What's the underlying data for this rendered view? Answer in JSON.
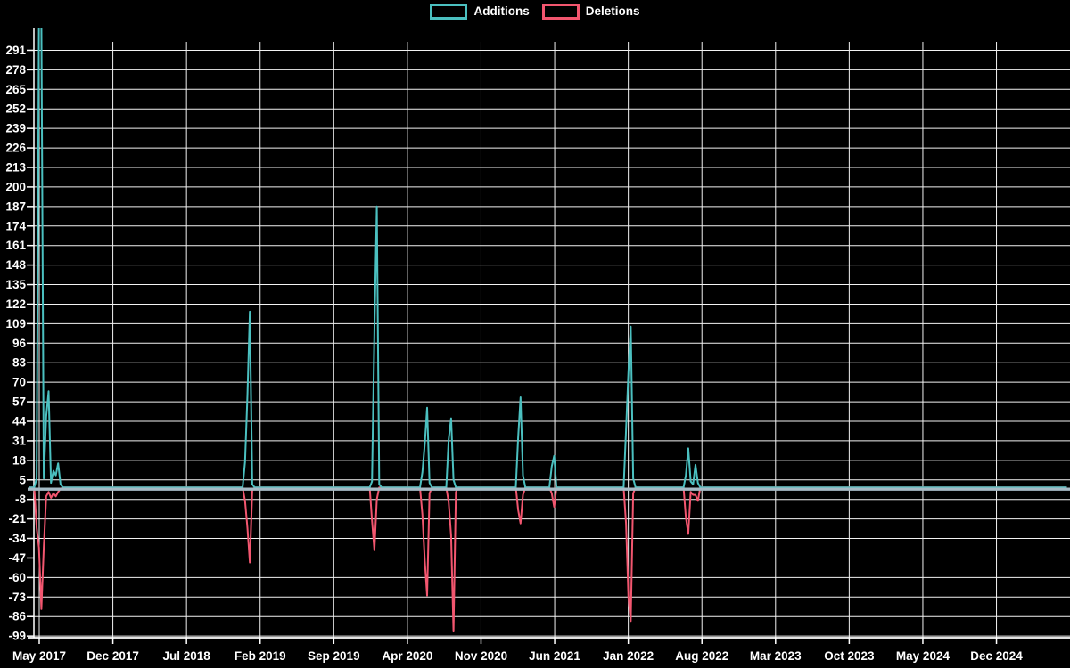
{
  "page": {
    "background": "#000000"
  },
  "legend": {
    "position": "top-center",
    "items": [
      {
        "label": "Additions",
        "color": "#4bc0c0"
      },
      {
        "label": "Deletions",
        "color": "#f2566f"
      }
    ]
  },
  "colors": {
    "background": "#000000",
    "grid": "#f2f2f2",
    "axis": "#ffffff",
    "tick_text": "#ffffff",
    "zero_baseline": "#a6bac5",
    "additions": "#4bc0c0",
    "deletions": "#f2566f"
  },
  "chart_data": {
    "type": "line",
    "title": "",
    "legend_position": "top-center",
    "grid": true,
    "x_axis": {
      "tick_labels": [
        "May 2017",
        "Dec 2017",
        "Jul 2018",
        "Feb 2019",
        "Sep 2019",
        "Apr 2020",
        "Nov 2020",
        "Jun 2021",
        "Jan 2022",
        "Aug 2022",
        "Mar 2023",
        "Oct 2023",
        "May 2024",
        "Dec 2024"
      ]
    },
    "y_axis": {
      "tick_labels": [
        291,
        278,
        265,
        252,
        239,
        226,
        213,
        200,
        187,
        174,
        161,
        148,
        135,
        122,
        109,
        96,
        83,
        70,
        57,
        44,
        31,
        18,
        5,
        -8,
        -21,
        -34,
        -47,
        -60,
        -73,
        -86,
        -99
      ],
      "min": -99,
      "max": 291,
      "step": 13
    },
    "baseline_value": 0,
    "weeks_total": 434,
    "notes": "weekly code-frequency style chart; values are 0 except at listed week indices; the two tallest Additions spikes in May 2017 exceed the visible scale (~306+) and are clipped at the top of the plot",
    "series": [
      {
        "name": "Additions",
        "color": "#4bc0c0",
        "points": [
          [
            3,
            6
          ],
          [
            4,
            312
          ],
          [
            5,
            309
          ],
          [
            6,
            6
          ],
          [
            7,
            47
          ],
          [
            8,
            64
          ],
          [
            9,
            3
          ],
          [
            10,
            11
          ],
          [
            11,
            8
          ],
          [
            12,
            16
          ],
          [
            13,
            2
          ],
          [
            90,
            17
          ],
          [
            91,
            61
          ],
          [
            92,
            117
          ],
          [
            93,
            2
          ],
          [
            143,
            4
          ],
          [
            144,
            104
          ],
          [
            145,
            187
          ],
          [
            146,
            2
          ],
          [
            164,
            10
          ],
          [
            165,
            29
          ],
          [
            166,
            53
          ],
          [
            167,
            3
          ],
          [
            175,
            32
          ],
          [
            176,
            46
          ],
          [
            177,
            5
          ],
          [
            204,
            33
          ],
          [
            205,
            60
          ],
          [
            206,
            8
          ],
          [
            218,
            14
          ],
          [
            219,
            21
          ],
          [
            249,
            38
          ],
          [
            250,
            77
          ],
          [
            251,
            107
          ],
          [
            252,
            6
          ],
          [
            274,
            8
          ],
          [
            275,
            26
          ],
          [
            276,
            4
          ],
          [
            277,
            2
          ],
          [
            278,
            15
          ],
          [
            279,
            3
          ]
        ]
      },
      {
        "name": "Deletions",
        "color": "#f2566f",
        "points": [
          [
            3,
            -27
          ],
          [
            4,
            -40
          ],
          [
            5,
            -81
          ],
          [
            6,
            -40
          ],
          [
            7,
            -6
          ],
          [
            8,
            -3
          ],
          [
            9,
            -7
          ],
          [
            10,
            -4
          ],
          [
            11,
            -6
          ],
          [
            12,
            -3
          ],
          [
            13,
            -1
          ],
          [
            90,
            -9
          ],
          [
            91,
            -27
          ],
          [
            92,
            -50
          ],
          [
            93,
            -2
          ],
          [
            143,
            -22
          ],
          [
            144,
            -42
          ],
          [
            145,
            -8
          ],
          [
            164,
            -18
          ],
          [
            165,
            -49
          ],
          [
            166,
            -72
          ],
          [
            167,
            -4
          ],
          [
            175,
            -10
          ],
          [
            176,
            -32
          ],
          [
            177,
            -96
          ],
          [
            178,
            -3
          ],
          [
            204,
            -15
          ],
          [
            205,
            -24
          ],
          [
            206,
            -5
          ],
          [
            218,
            -4
          ],
          [
            219,
            -13
          ],
          [
            249,
            -24
          ],
          [
            250,
            -73
          ],
          [
            251,
            -89
          ],
          [
            252,
            -4
          ],
          [
            274,
            -20
          ],
          [
            275,
            -31
          ],
          [
            276,
            -3
          ],
          [
            277,
            -5
          ],
          [
            278,
            -5
          ],
          [
            279,
            -9
          ]
        ]
      }
    ]
  }
}
